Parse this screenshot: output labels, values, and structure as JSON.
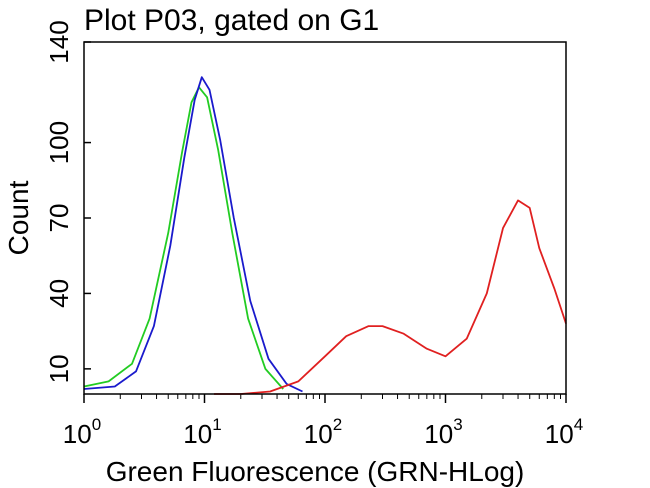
{
  "chart_data": {
    "type": "line",
    "title": "Plot P03, gated on G1",
    "xlabel": "Green Fluorescence (GRN-HLog)",
    "ylabel": "Count",
    "x_scale": "log",
    "xlim": [
      1,
      10000
    ],
    "ylim": [
      0,
      140
    ],
    "x_ticks": [
      {
        "base": "10",
        "exp": "0",
        "value": 1
      },
      {
        "base": "10",
        "exp": "1",
        "value": 10
      },
      {
        "base": "10",
        "exp": "2",
        "value": 100
      },
      {
        "base": "10",
        "exp": "3",
        "value": 1000
      },
      {
        "base": "10",
        "exp": "4",
        "value": 10000
      }
    ],
    "y_ticks": [
      "10",
      "40",
      "70",
      "100",
      "140"
    ],
    "y_tick_values": [
      10,
      40,
      70,
      100,
      140
    ],
    "grid": false,
    "legend": "none",
    "series": [
      {
        "color": "#22cc22",
        "x": [
          1,
          1.6,
          2.5,
          3.5,
          5,
          6.5,
          7.8,
          9,
          10.5,
          13,
          17,
          23,
          32,
          45
        ],
        "y": [
          3,
          5,
          12,
          30,
          64,
          96,
          116,
          122,
          118,
          97,
          64,
          30,
          10,
          2
        ]
      },
      {
        "color": "#1a1acc",
        "x": [
          1,
          1.8,
          2.7,
          3.8,
          5.2,
          6.8,
          8.3,
          9.5,
          11,
          13.5,
          17.5,
          24,
          34,
          48,
          65
        ],
        "y": [
          2,
          3,
          9,
          27,
          59,
          94,
          117,
          126,
          121,
          101,
          70,
          37,
          14,
          4,
          1
        ]
      },
      {
        "color": "#e02020",
        "x": [
          12,
          20,
          35,
          60,
          100,
          150,
          230,
          300,
          450,
          700,
          1000,
          1500,
          2200,
          3000,
          4000,
          5000,
          6000,
          8000,
          10000
        ],
        "y": [
          0,
          0,
          1,
          5,
          15,
          23,
          27,
          27,
          24,
          18,
          15,
          22,
          40,
          66,
          77,
          74,
          58,
          42,
          28
        ]
      }
    ]
  }
}
